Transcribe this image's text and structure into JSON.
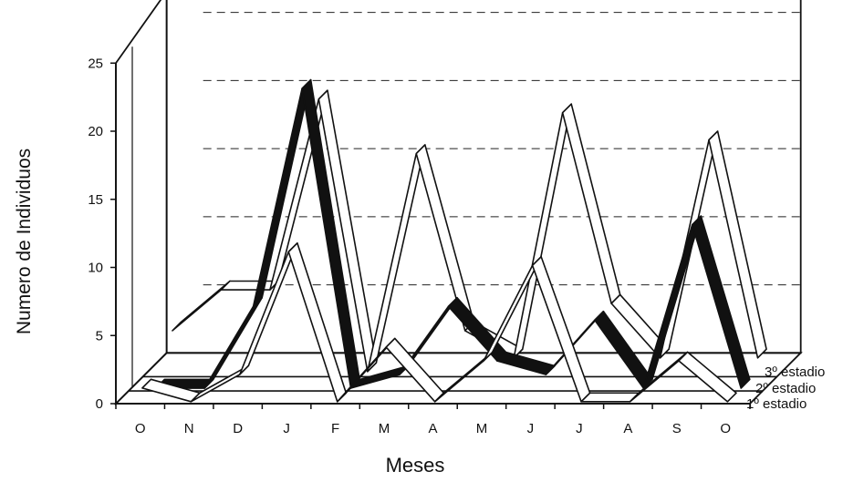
{
  "chart_data": {
    "type": "line",
    "subtype": "3d-ribbon",
    "xlabel": "Meses",
    "ylabel": "Numero de Individuos",
    "categories": [
      "O",
      "N",
      "D",
      "J",
      "F",
      "M",
      "A",
      "M",
      "J",
      "J",
      "A",
      "S",
      "O"
    ],
    "ylim": [
      0,
      25
    ],
    "yticks": [
      "0",
      "5",
      "10",
      "15",
      "20",
      "25"
    ],
    "grid": true,
    "legend": "right, stacked by depth",
    "series": [
      {
        "name": "1º estadio",
        "values": [
          1,
          0,
          2,
          11,
          0,
          4,
          0,
          3,
          10,
          0,
          0,
          3,
          0
        ],
        "color": "#ffffff"
      },
      {
        "name": "2º estadio",
        "values": [
          0,
          0,
          6,
          22,
          0,
          1,
          6,
          2,
          1,
          5,
          0,
          12,
          0
        ],
        "color": "#111111"
      },
      {
        "name": "3º estadio",
        "values": [
          3,
          6,
          6,
          20,
          0,
          16,
          3,
          1,
          19,
          5,
          1,
          17,
          1
        ],
        "color": "#ffffff"
      }
    ]
  }
}
